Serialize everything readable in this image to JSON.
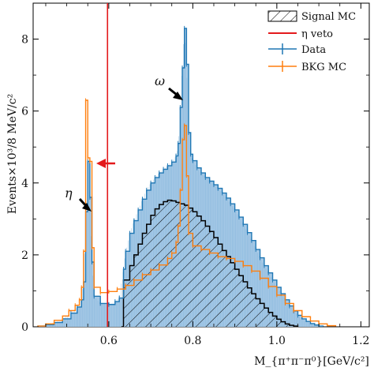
{
  "chart_data": {
    "type": "histogram",
    "xlabel": "M_{π⁺π⁻π⁰}[GeV/c²]",
    "ylabel": "Events×10³/8 MeV/c²",
    "xlim": [
      0.42,
      1.22
    ],
    "ylim": [
      0,
      9.0
    ],
    "x_ticks": [
      "0.6",
      "0.8",
      "1.0",
      "1.2"
    ],
    "y_ticks": [
      "0",
      "2",
      "4",
      "6",
      "8"
    ],
    "colors": {
      "data": "#1f77b4",
      "data_fill": "#a6c9e6",
      "bkg": "#ff7f0e",
      "signal": "#000000",
      "veto": "#e31a1c"
    },
    "legend": {
      "position": "top-right",
      "entries": {
        "signal": "Signal MC",
        "veto": "η veto",
        "data": "Data",
        "bkg": "BKG MC"
      }
    },
    "veto_line_x": 0.597,
    "annotations": {
      "eta": "η",
      "omega": "ω"
    },
    "series": [
      {
        "name": "Data",
        "points": [
          [
            0.43,
            0.02
          ],
          [
            0.45,
            0.06
          ],
          [
            0.47,
            0.12
          ],
          [
            0.49,
            0.22
          ],
          [
            0.51,
            0.38
          ],
          [
            0.525,
            0.55
          ],
          [
            0.535,
            0.75
          ],
          [
            0.54,
            1.25
          ],
          [
            0.545,
            3.2
          ],
          [
            0.55,
            4.6
          ],
          [
            0.555,
            3.6
          ],
          [
            0.56,
            1.8
          ],
          [
            0.565,
            0.85
          ],
          [
            0.58,
            0.65
          ],
          [
            0.6,
            0.62
          ],
          [
            0.615,
            0.7
          ],
          [
            0.625,
            0.8
          ],
          [
            0.635,
            1.6
          ],
          [
            0.64,
            2.1
          ],
          [
            0.65,
            2.6
          ],
          [
            0.66,
            2.95
          ],
          [
            0.67,
            3.25
          ],
          [
            0.68,
            3.55
          ],
          [
            0.69,
            3.8
          ],
          [
            0.7,
            4.0
          ],
          [
            0.71,
            4.15
          ],
          [
            0.72,
            4.28
          ],
          [
            0.73,
            4.38
          ],
          [
            0.74,
            4.48
          ],
          [
            0.75,
            4.58
          ],
          [
            0.76,
            4.75
          ],
          [
            0.765,
            5.1
          ],
          [
            0.77,
            6.1
          ],
          [
            0.775,
            7.2
          ],
          [
            0.78,
            8.3
          ],
          [
            0.785,
            7.3
          ],
          [
            0.79,
            5.4
          ],
          [
            0.795,
            4.8
          ],
          [
            0.8,
            4.62
          ],
          [
            0.81,
            4.42
          ],
          [
            0.82,
            4.28
          ],
          [
            0.83,
            4.15
          ],
          [
            0.84,
            4.05
          ],
          [
            0.85,
            3.95
          ],
          [
            0.86,
            3.85
          ],
          [
            0.87,
            3.72
          ],
          [
            0.88,
            3.58
          ],
          [
            0.89,
            3.42
          ],
          [
            0.9,
            3.25
          ],
          [
            0.91,
            3.05
          ],
          [
            0.92,
            2.85
          ],
          [
            0.93,
            2.62
          ],
          [
            0.94,
            2.4
          ],
          [
            0.95,
            2.15
          ],
          [
            0.96,
            1.92
          ],
          [
            0.97,
            1.7
          ],
          [
            0.98,
            1.5
          ],
          [
            0.99,
            1.3
          ],
          [
            1.0,
            1.1
          ],
          [
            1.01,
            0.92
          ],
          [
            1.02,
            0.75
          ],
          [
            1.03,
            0.58
          ],
          [
            1.04,
            0.44
          ],
          [
            1.05,
            0.32
          ],
          [
            1.06,
            0.22
          ],
          [
            1.07,
            0.15
          ],
          [
            1.08,
            0.09
          ],
          [
            1.09,
            0.05
          ],
          [
            1.1,
            0.02
          ],
          [
            1.11,
            0.01
          ]
        ]
      },
      {
        "name": "BKG MC",
        "points": [
          [
            0.43,
            0.02
          ],
          [
            0.45,
            0.08
          ],
          [
            0.47,
            0.18
          ],
          [
            0.49,
            0.3
          ],
          [
            0.505,
            0.45
          ],
          [
            0.52,
            0.6
          ],
          [
            0.53,
            0.75
          ],
          [
            0.535,
            1.1
          ],
          [
            0.54,
            2.1
          ],
          [
            0.545,
            6.3
          ],
          [
            0.55,
            4.7
          ],
          [
            0.555,
            4.6
          ],
          [
            0.56,
            2.2
          ],
          [
            0.565,
            1.1
          ],
          [
            0.58,
            0.95
          ],
          [
            0.6,
            0.98
          ],
          [
            0.62,
            1.05
          ],
          [
            0.64,
            1.15
          ],
          [
            0.66,
            1.3
          ],
          [
            0.68,
            1.45
          ],
          [
            0.7,
            1.58
          ],
          [
            0.72,
            1.72
          ],
          [
            0.74,
            1.9
          ],
          [
            0.75,
            2.05
          ],
          [
            0.76,
            2.35
          ],
          [
            0.765,
            2.8
          ],
          [
            0.77,
            3.8
          ],
          [
            0.775,
            5.2
          ],
          [
            0.78,
            5.6
          ],
          [
            0.785,
            4.2
          ],
          [
            0.79,
            2.6
          ],
          [
            0.8,
            2.25
          ],
          [
            0.82,
            2.15
          ],
          [
            0.84,
            2.05
          ],
          [
            0.86,
            1.95
          ],
          [
            0.88,
            1.9
          ],
          [
            0.9,
            1.82
          ],
          [
            0.92,
            1.7
          ],
          [
            0.94,
            1.55
          ],
          [
            0.96,
            1.35
          ],
          [
            0.98,
            1.12
          ],
          [
            1.0,
            0.88
          ],
          [
            1.02,
            0.65
          ],
          [
            1.04,
            0.45
          ],
          [
            1.06,
            0.28
          ],
          [
            1.08,
            0.16
          ],
          [
            1.1,
            0.08
          ],
          [
            1.12,
            0.03
          ],
          [
            1.14,
            0.01
          ]
        ]
      },
      {
        "name": "Signal MC",
        "points": [
          [
            0.63,
            0.0
          ],
          [
            0.635,
            1.3
          ],
          [
            0.65,
            1.7
          ],
          [
            0.66,
            2.0
          ],
          [
            0.67,
            2.3
          ],
          [
            0.68,
            2.6
          ],
          [
            0.69,
            2.85
          ],
          [
            0.7,
            3.1
          ],
          [
            0.71,
            3.28
          ],
          [
            0.72,
            3.4
          ],
          [
            0.73,
            3.48
          ],
          [
            0.74,
            3.52
          ],
          [
            0.75,
            3.5
          ],
          [
            0.76,
            3.46
          ],
          [
            0.77,
            3.42
          ],
          [
            0.78,
            3.38
          ],
          [
            0.79,
            3.3
          ],
          [
            0.8,
            3.2
          ],
          [
            0.81,
            3.08
          ],
          [
            0.82,
            2.95
          ],
          [
            0.83,
            2.8
          ],
          [
            0.84,
            2.65
          ],
          [
            0.85,
            2.48
          ],
          [
            0.86,
            2.3
          ],
          [
            0.87,
            2.12
          ],
          [
            0.88,
            1.95
          ],
          [
            0.89,
            1.78
          ],
          [
            0.9,
            1.6
          ],
          [
            0.91,
            1.42
          ],
          [
            0.92,
            1.25
          ],
          [
            0.93,
            1.08
          ],
          [
            0.94,
            0.92
          ],
          [
            0.95,
            0.78
          ],
          [
            0.96,
            0.65
          ],
          [
            0.97,
            0.52
          ],
          [
            0.98,
            0.4
          ],
          [
            0.99,
            0.3
          ],
          [
            1.0,
            0.21
          ],
          [
            1.01,
            0.14
          ],
          [
            1.02,
            0.08
          ],
          [
            1.03,
            0.04
          ],
          [
            1.04,
            0.02
          ],
          [
            1.05,
            0.0
          ]
        ]
      }
    ]
  }
}
